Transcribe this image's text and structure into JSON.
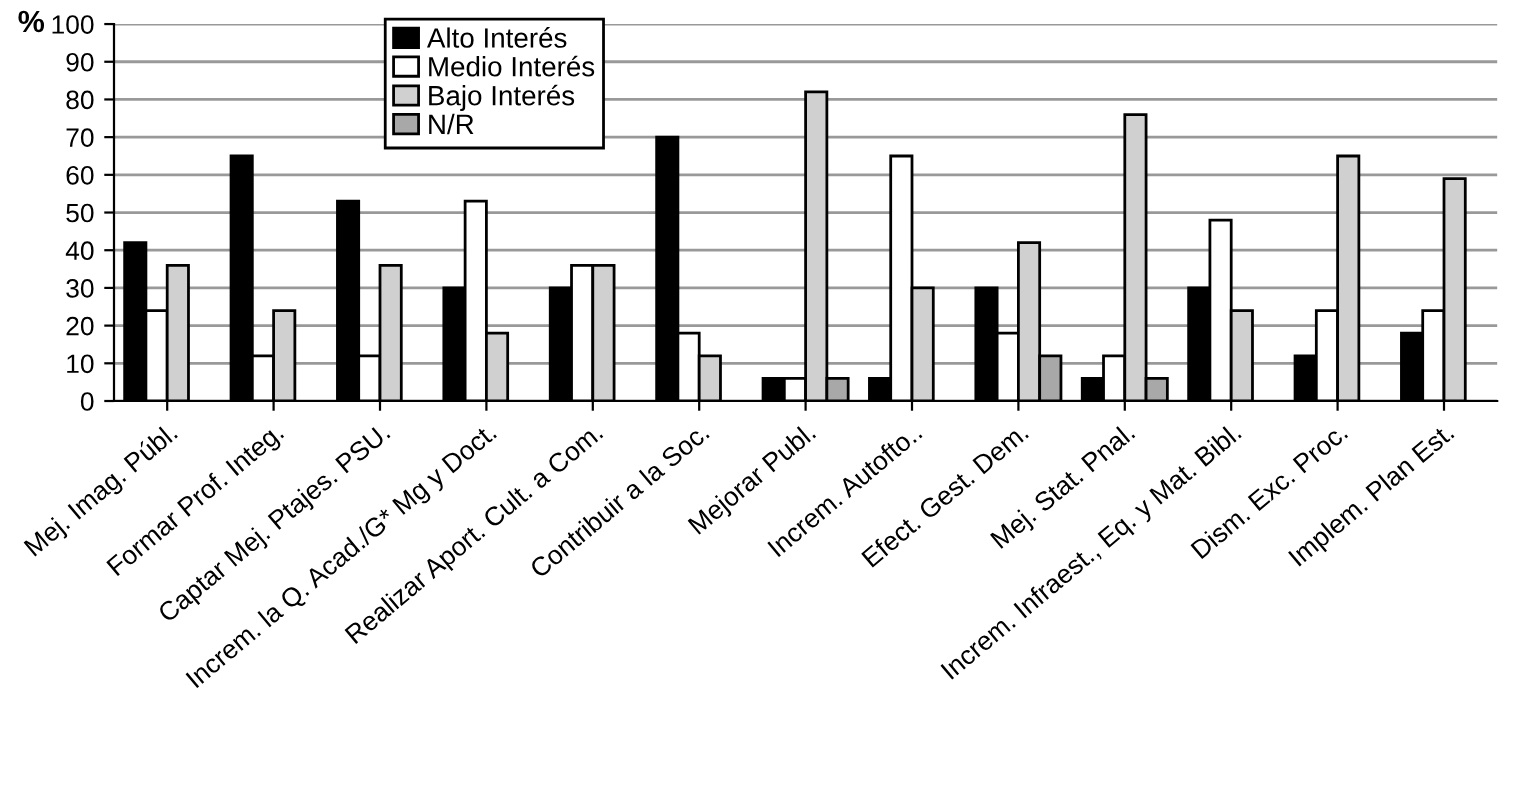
{
  "chart_data": {
    "type": "bar",
    "ylabel": "%",
    "categories": [
      "Mej. Imag. Públ.",
      "Formar Prof. Integ.",
      "Captar Mej. Ptajes. PSU.",
      "Increm. la Q. Acad./G* Mg y Doct.",
      "Realizar Aport. Cult. a Com.",
      "Contribuir a la Soc.",
      "Mejorar Publ.",
      "Increm. Autofto..",
      "Efect. Gest. Dem.",
      "Mej. Stat. Pnal.",
      "Increm. Infraest., Eq. y Mat. Bibl.",
      "Dism. Exc. Proc.",
      "Implem. Plan Est."
    ],
    "series": [
      {
        "name": "Alto Interés",
        "color": "#000000",
        "values": [
          42,
          65,
          53,
          30,
          30,
          70,
          6,
          6,
          30,
          6,
          30,
          12,
          18
        ]
      },
      {
        "name": "Medio Interés",
        "color": "#ffffff",
        "values": [
          24,
          12,
          12,
          53,
          36,
          18,
          6,
          65,
          18,
          12,
          48,
          24,
          24
        ]
      },
      {
        "name": "Bajo Interés",
        "color": "#d0d0d0",
        "values": [
          36,
          24,
          36,
          18,
          36,
          12,
          82,
          30,
          42,
          76,
          24,
          65,
          59
        ]
      },
      {
        "name": "N/R",
        "color": "#a8a8a8",
        "values": [
          null,
          null,
          null,
          null,
          null,
          null,
          6,
          null,
          12,
          6,
          null,
          null,
          null
        ]
      }
    ],
    "ylim": [
      0,
      100
    ],
    "yticks": [
      0,
      10,
      20,
      30,
      40,
      50,
      60,
      70,
      80,
      90,
      100
    ],
    "grid": "y",
    "legend": "top"
  }
}
